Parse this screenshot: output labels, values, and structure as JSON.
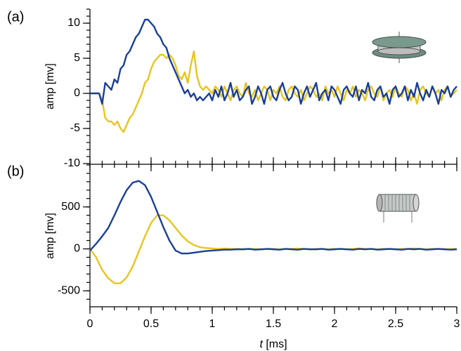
{
  "chart_data": [
    {
      "type": "line",
      "panel_label": "(a)",
      "ylabel": "amp [mv]",
      "ylim": [
        -10,
        12
      ],
      "yticks": [
        -10,
        -5,
        0,
        5,
        10
      ],
      "yminorticks": [
        -10,
        -9,
        -8,
        -7,
        -6,
        -5,
        -4,
        -3,
        -2,
        -1,
        0,
        1,
        2,
        3,
        4,
        5,
        6,
        7,
        8,
        9,
        10,
        11,
        12
      ],
      "xlim": [
        0,
        3
      ],
      "x": [
        0,
        0.025,
        0.05,
        0.075,
        0.1,
        0.125,
        0.15,
        0.175,
        0.2,
        0.225,
        0.25,
        0.275,
        0.3,
        0.325,
        0.35,
        0.375,
        0.4,
        0.425,
        0.45,
        0.475,
        0.5,
        0.525,
        0.55,
        0.575,
        0.6,
        0.625,
        0.65,
        0.675,
        0.7,
        0.725,
        0.75,
        0.775,
        0.8,
        0.825,
        0.85,
        0.875,
        0.9,
        0.925,
        0.95,
        0.975,
        1,
        1.025,
        1.05,
        1.075,
        1.1,
        1.125,
        1.15,
        1.175,
        1.2,
        1.225,
        1.25,
        1.275,
        1.3,
        1.325,
        1.35,
        1.375,
        1.4,
        1.425,
        1.45,
        1.475,
        1.5,
        1.525,
        1.55,
        1.575,
        1.6,
        1.625,
        1.65,
        1.675,
        1.7,
        1.725,
        1.75,
        1.775,
        1.8,
        1.825,
        1.85,
        1.875,
        1.9,
        1.925,
        1.95,
        1.975,
        2,
        2.025,
        2.05,
        2.075,
        2.1,
        2.125,
        2.15,
        2.175,
        2.2,
        2.225,
        2.25,
        2.275,
        2.3,
        2.325,
        2.35,
        2.375,
        2.4,
        2.425,
        2.45,
        2.475,
        2.5,
        2.525,
        2.55,
        2.575,
        2.6,
        2.625,
        2.65,
        2.675,
        2.7,
        2.725,
        2.75,
        2.775,
        2.8,
        2.825,
        2.85,
        2.875,
        2.9,
        2.925,
        2.95,
        2.975,
        3
      ],
      "series": [
        {
          "color": "#e8c51e",
          "values": [
            0,
            0,
            0,
            0,
            -1,
            -3.5,
            -4,
            -4,
            -4.5,
            -4,
            -5,
            -5.5,
            -4.5,
            -3.5,
            -3,
            -2,
            -1,
            0,
            1.5,
            2,
            3.5,
            4.5,
            5,
            5.5,
            5.5,
            5,
            5.5,
            5,
            4,
            2.5,
            2,
            3,
            1.5,
            4,
            6,
            2.5,
            1,
            0.5,
            1,
            0.5,
            0,
            1,
            0.5,
            -0.5,
            1,
            0,
            -1,
            0.5,
            1,
            0,
            -0.5,
            1.5,
            0,
            -0.5,
            0.5,
            -1,
            0,
            1,
            0.5,
            -1,
            0.5,
            0,
            1,
            -0.5,
            -1,
            0.5,
            1,
            0,
            -0.5,
            0.5,
            -1,
            0,
            1,
            0.5,
            -0.5,
            0,
            -1,
            1,
            0,
            0.5,
            -0.5,
            1,
            0,
            -1,
            0.5,
            0,
            1,
            -0.5,
            0.5,
            0,
            -1,
            0.5,
            1,
            0,
            -0.5,
            1,
            -1,
            0,
            0.5,
            -0.5,
            1,
            0,
            -0.5,
            1,
            0.5,
            -1,
            0,
            -1.5,
            0.5,
            1,
            0,
            -0.5,
            1,
            0,
            0.5,
            -1,
            0.5,
            1,
            -0.5,
            0,
            0.5
          ]
        },
        {
          "color": "#1a3f99",
          "values": [
            0,
            0,
            0,
            0,
            -1.5,
            1.5,
            1,
            0.5,
            2,
            1.5,
            3.5,
            4,
            5.5,
            6,
            7,
            8,
            8.5,
            9.5,
            10.5,
            10.5,
            10,
            9.5,
            8.5,
            8,
            7,
            6.5,
            5,
            4,
            3,
            2,
            1,
            0,
            0.5,
            -0.5,
            0,
            -1,
            -0.5,
            -1,
            -0.5,
            0,
            -1,
            0.5,
            -0.5,
            1,
            -1,
            0,
            1.5,
            -0.5,
            0.5,
            -1,
            -0.5,
            0.5,
            1,
            -1.5,
            -0.5,
            1,
            0,
            -1.5,
            0.5,
            1,
            -0.5,
            -1,
            0.5,
            1.5,
            0,
            -1,
            -0.5,
            1,
            0.5,
            -1.5,
            0,
            1,
            -0.5,
            0.5,
            1.5,
            -1,
            0,
            0.5,
            -1,
            1,
            0.5,
            -0.5,
            -1.5,
            0.5,
            1,
            0,
            -0.5,
            1,
            -1,
            0.5,
            0,
            1.5,
            -0.5,
            -1,
            0.5,
            1,
            -0.5,
            0,
            -1.5,
            0.5,
            1,
            -0.5,
            0,
            1,
            -1,
            0.5,
            -0.5,
            1.5,
            0,
            -1,
            0.5,
            -0.5,
            1,
            0,
            -1.5,
            0.5,
            0,
            1,
            -0.5,
            0.5,
            1
          ]
        }
      ]
    },
    {
      "type": "line",
      "panel_label": "(b)",
      "ylabel": "amp [mv]",
      "ylim": [
        -690,
        1000
      ],
      "yticks": [
        -500,
        0,
        500
      ],
      "yminorticks": [
        -600,
        -500,
        -400,
        -300,
        -200,
        -100,
        0,
        100,
        200,
        300,
        400,
        500,
        600,
        700,
        800,
        900,
        1000
      ],
      "xlim": [
        0,
        3
      ],
      "xticks": [
        0,
        0.5,
        1,
        1.5,
        2,
        2.5,
        3
      ],
      "xminorticks": [
        0,
        0.1,
        0.2,
        0.3,
        0.4,
        0.5,
        0.6,
        0.7,
        0.8,
        0.9,
        1,
        1.1,
        1.2,
        1.3,
        1.4,
        1.5,
        1.6,
        1.7,
        1.8,
        1.9,
        2,
        2.1,
        2.2,
        2.3,
        2.4,
        2.5,
        2.6,
        2.7,
        2.8,
        2.9,
        3
      ],
      "xlabel_symbol": "t",
      "xlabel_unit": "[ms]",
      "x": [
        0,
        0.05,
        0.1,
        0.15,
        0.2,
        0.25,
        0.3,
        0.35,
        0.4,
        0.45,
        0.5,
        0.55,
        0.6,
        0.65,
        0.7,
        0.75,
        0.8,
        0.85,
        0.9,
        0.95,
        1,
        1.05,
        1.1,
        1.15,
        1.2,
        1.25,
        1.3,
        1.35,
        1.4,
        1.45,
        1.5,
        1.55,
        1.6,
        1.65,
        1.7,
        1.75,
        1.8,
        1.85,
        1.9,
        1.95,
        2,
        2.05,
        2.1,
        2.15,
        2.2,
        2.25,
        2.3,
        2.35,
        2.4,
        2.45,
        2.5,
        2.55,
        2.6,
        2.65,
        2.7,
        2.75,
        2.8,
        2.85,
        2.9,
        2.95,
        3
      ],
      "series": [
        {
          "color": "#e8c51e",
          "values": [
            0,
            -100,
            -250,
            -350,
            -410,
            -410,
            -340,
            -210,
            -30,
            150,
            310,
            400,
            400,
            340,
            250,
            160,
            90,
            45,
            20,
            10,
            5,
            0,
            5,
            0,
            0,
            -5,
            0,
            0,
            -5,
            0,
            0,
            -5,
            0,
            0,
            5,
            0,
            -5,
            0,
            0,
            -5,
            0,
            0,
            -5,
            0,
            5,
            0,
            0,
            -5,
            0,
            0,
            -5,
            0,
            0,
            5,
            0,
            -5,
            0,
            0,
            -5,
            0,
            0
          ]
        },
        {
          "color": "#1a3f99",
          "values": [
            -20,
            60,
            150,
            250,
            400,
            560,
            700,
            790,
            810,
            760,
            620,
            440,
            260,
            100,
            -20,
            -55,
            -55,
            -45,
            -35,
            -25,
            -20,
            -15,
            -10,
            -10,
            -5,
            -5,
            0,
            -10,
            -5,
            0,
            -5,
            -10,
            0,
            -5,
            -10,
            0,
            -5,
            -5,
            0,
            -10,
            -5,
            0,
            -5,
            -10,
            0,
            -5,
            0,
            -10,
            -5,
            0,
            -5,
            -10,
            0,
            -5,
            0,
            -10,
            -5,
            0,
            -5,
            -10,
            -5
          ]
        }
      ]
    }
  ]
}
